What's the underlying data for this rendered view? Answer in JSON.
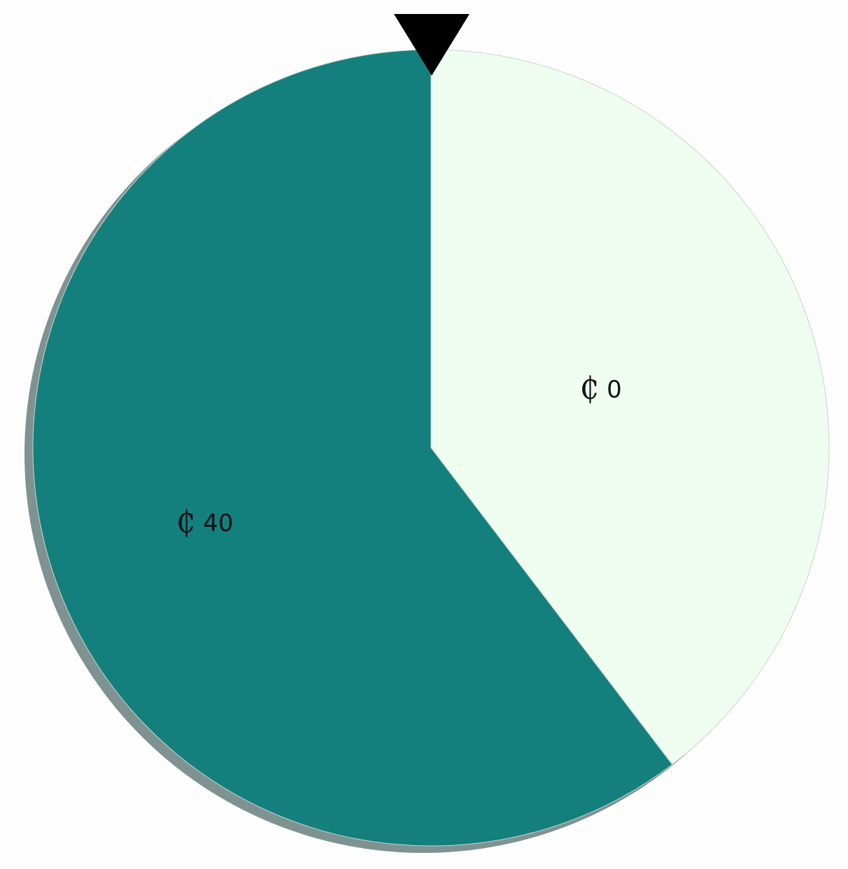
{
  "wheel": {
    "pointer_icon": "triangle-down-pointer-icon",
    "segments": [
      {
        "currency_symbol": "₵",
        "amount": "0",
        "fraction": 0.3964,
        "color": "#effdf0"
      },
      {
        "currency_symbol": "₵",
        "amount": "40",
        "fraction": 0.6036,
        "color": "#13807e"
      }
    ],
    "shadow_color": "#7f9292",
    "pointer_color": "#000000"
  }
}
